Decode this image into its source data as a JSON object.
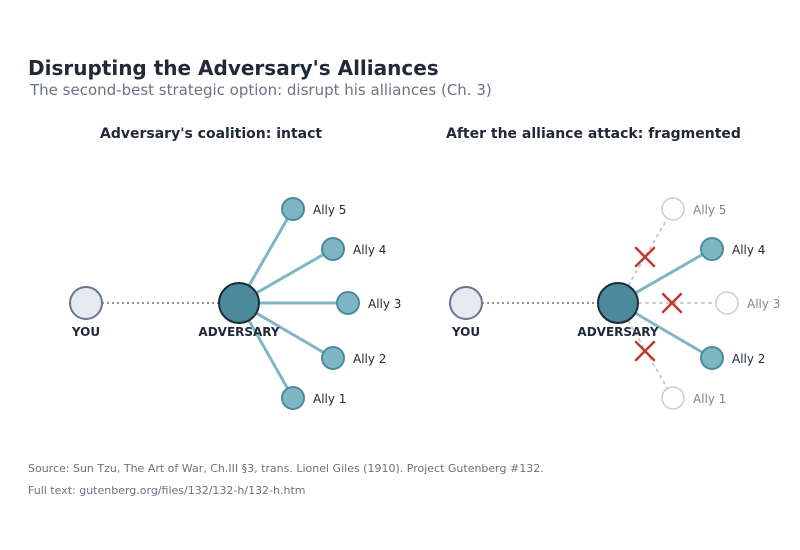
{
  "title": "Disrupting the Adversary's Alliances",
  "subtitle": "The second-best strategic option: disrupt his alliances (Ch. 3)",
  "colors": {
    "you_fill": "#e5e9f0",
    "you_stroke": "#6b7590",
    "adversary_fill": "#4a8a9a",
    "adversary_stroke": "#1f2937",
    "ally_fill": "#7fb6c4",
    "ally_stroke": "#4a8a9a",
    "link": "#7fb6c4",
    "broken_link": "#c7ccd3",
    "cut_mark": "#c0392b",
    "dotted_link": "#6b7280"
  },
  "panels": [
    {
      "title": "Adversary's coalition: intact",
      "you_label": "YOU",
      "adversary_label": "ADVERSARY",
      "allies": [
        {
          "label": "Ally 5",
          "connected": true
        },
        {
          "label": "Ally 4",
          "connected": true
        },
        {
          "label": "Ally 3",
          "connected": true
        },
        {
          "label": "Ally 2",
          "connected": true
        },
        {
          "label": "Ally 1",
          "connected": true
        }
      ]
    },
    {
      "title": "After the alliance attack: fragmented",
      "you_label": "YOU",
      "adversary_label": "ADVERSARY",
      "allies": [
        {
          "label": "Ally 5",
          "connected": false
        },
        {
          "label": "Ally 4",
          "connected": true
        },
        {
          "label": "Ally 3",
          "connected": false
        },
        {
          "label": "Ally 2",
          "connected": true
        },
        {
          "label": "Ally 1",
          "connected": false
        }
      ]
    }
  ],
  "source_line1": "Source: Sun Tzu, The Art of War, Ch.III §3, trans. Lionel Giles (1910). Project Gutenberg #132.",
  "source_line2": "Full text: gutenberg.org/files/132/132-h/132-h.htm"
}
